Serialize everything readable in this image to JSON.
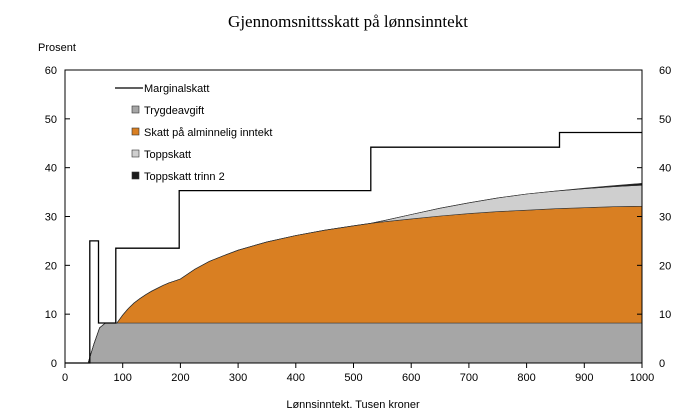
{
  "chart_data": {
    "type": "area",
    "title": "Gjennomsnittsskatt på lønnsinntekt",
    "ylabel": "Prosent",
    "xlabel": "Lønnsinntekt. Tusen kroner",
    "xlim": [
      0,
      1000
    ],
    "ylim": [
      0,
      60
    ],
    "xticks": [
      "0",
      "100",
      "200",
      "300",
      "400",
      "500",
      "600",
      "700",
      "800",
      "900",
      "1000"
    ],
    "yticks": [
      "0",
      "10",
      "20",
      "30",
      "40",
      "50",
      "60"
    ],
    "grid": false,
    "legend_position": "top-left",
    "x": [
      0,
      40,
      50,
      60,
      70,
      80,
      90,
      100,
      110,
      120,
      130,
      140,
      150,
      160,
      170,
      180,
      190,
      200,
      225,
      250,
      275,
      300,
      350,
      400,
      450,
      500,
      530,
      550,
      600,
      650,
      700,
      750,
      800,
      850,
      900,
      950,
      1000
    ],
    "series": [
      {
        "name": "Trygdeavgift",
        "type": "area",
        "color": "#a6a6a6",
        "values": [
          0,
          0,
          3.8,
          7.2,
          8.2,
          8.2,
          8.2,
          8.2,
          8.2,
          8.2,
          8.2,
          8.2,
          8.2,
          8.2,
          8.2,
          8.2,
          8.2,
          8.2,
          8.2,
          8.2,
          8.2,
          8.2,
          8.2,
          8.2,
          8.2,
          8.2,
          8.2,
          8.2,
          8.2,
          8.2,
          8.2,
          8.2,
          8.2,
          8.2,
          8.2,
          8.2,
          8.2
        ]
      },
      {
        "name": "Skatt på alminnelig inntekt",
        "type": "area",
        "color": "#d97f22",
        "values": [
          0,
          0,
          0,
          0,
          0,
          0,
          0,
          1.6,
          3.0,
          4.1,
          5.0,
          5.8,
          6.5,
          7.1,
          7.7,
          8.2,
          8.6,
          9.0,
          11.0,
          12.6,
          13.8,
          14.9,
          16.6,
          17.9,
          19.0,
          19.9,
          20.4,
          20.7,
          21.3,
          21.9,
          22.4,
          22.8,
          23.1,
          23.4,
          23.6,
          23.8,
          23.9
        ]
      },
      {
        "name": "Toppskatt",
        "type": "area",
        "color": "#cfcfcf",
        "values": [
          0,
          0,
          0,
          0,
          0,
          0,
          0,
          0,
          0,
          0,
          0,
          0,
          0,
          0,
          0,
          0,
          0,
          0,
          0,
          0,
          0,
          0,
          0,
          0,
          0,
          0,
          0,
          0.2,
          0.9,
          1.6,
          2.2,
          2.8,
          3.3,
          3.6,
          3.9,
          4.1,
          4.3
        ]
      },
      {
        "name": "Toppskatt trinn 2",
        "type": "area",
        "color": "#1a1a1a",
        "values": [
          0,
          0,
          0,
          0,
          0,
          0,
          0,
          0,
          0,
          0,
          0,
          0,
          0,
          0,
          0,
          0,
          0,
          0,
          0,
          0,
          0,
          0,
          0,
          0,
          0,
          0,
          0,
          0,
          0,
          0,
          0,
          0,
          0,
          0,
          0.1,
          0.2,
          0.4
        ]
      },
      {
        "name": "Marginalskatt",
        "type": "step",
        "color": "#000000",
        "points": [
          [
            0,
            0
          ],
          [
            43,
            0
          ],
          [
            43,
            25
          ],
          [
            58,
            25
          ],
          [
            58,
            8.2
          ],
          [
            88,
            8.2
          ],
          [
            88,
            23.5
          ],
          [
            198,
            23.5
          ],
          [
            198,
            35.3
          ],
          [
            530,
            35.3
          ],
          [
            530,
            44.2
          ],
          [
            857,
            44.2
          ],
          [
            857,
            47.2
          ],
          [
            1000,
            47.2
          ]
        ]
      }
    ]
  }
}
